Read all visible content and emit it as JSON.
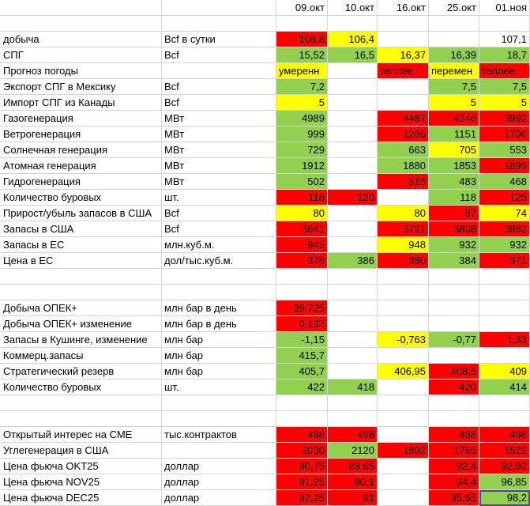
{
  "colors": {
    "red": "#ff0000",
    "green": "#92d050",
    "yellow": "#ffff00"
  },
  "columns": [
    "09.окт",
    "10.окт",
    "16.окт",
    "25.окт",
    "01.ноя"
  ],
  "rows": [
    {
      "label": "",
      "unit": "",
      "cells": [
        {
          "v": "",
          "c": ""
        },
        {
          "v": "",
          "c": ""
        },
        {
          "v": "",
          "c": ""
        },
        {
          "v": "",
          "c": ""
        },
        {
          "v": "",
          "c": ""
        }
      ]
    },
    {
      "label": "добыча",
      "unit": "Bcf  в сутки",
      "cells": [
        {
          "v": "106,8",
          "c": "r"
        },
        {
          "v": "106,4",
          "c": "y"
        },
        {
          "v": "",
          "c": ""
        },
        {
          "v": "",
          "c": ""
        },
        {
          "v": "107,1",
          "c": ""
        }
      ]
    },
    {
      "label": "СПГ",
      "unit": "Bcf",
      "cells": [
        {
          "v": "15,52",
          "c": "g"
        },
        {
          "v": "16,5",
          "c": "g"
        },
        {
          "v": "16,37",
          "c": "y"
        },
        {
          "v": "16,39",
          "c": "g"
        },
        {
          "v": "18,7",
          "c": "g"
        }
      ]
    },
    {
      "label": "Прогноз погоды",
      "unit": "",
      "cells": [
        {
          "v": "умеренн",
          "c": "y",
          "t": "l"
        },
        {
          "v": "",
          "c": ""
        },
        {
          "v": "теплее",
          "c": "r",
          "t": "l"
        },
        {
          "v": "перемен",
          "c": "y",
          "t": "l"
        },
        {
          "v": "теплее",
          "c": "r",
          "t": "l"
        }
      ]
    },
    {
      "label": "Экспорт СПГ в Мексику",
      "unit": "Bcf",
      "cells": [
        {
          "v": "7,2",
          "c": "g"
        },
        {
          "v": "",
          "c": ""
        },
        {
          "v": "",
          "c": ""
        },
        {
          "v": "7,5",
          "c": "g"
        },
        {
          "v": "7,5",
          "c": "g"
        }
      ]
    },
    {
      "label": "Импорт СПГ из Канады",
      "unit": "Bcf",
      "cells": [
        {
          "v": "5",
          "c": "y"
        },
        {
          "v": "",
          "c": ""
        },
        {
          "v": "",
          "c": ""
        },
        {
          "v": "5",
          "c": "y"
        },
        {
          "v": "5",
          "c": "y"
        }
      ]
    },
    {
      "label": "Газогенерация",
      "unit": "МВт",
      "cells": [
        {
          "v": "4989",
          "c": "g"
        },
        {
          "v": "",
          "c": ""
        },
        {
          "v": "4487",
          "c": "r"
        },
        {
          "v": "4246",
          "c": "r"
        },
        {
          "v": "3992",
          "c": "r"
        }
      ]
    },
    {
      "label": "Ветрогенерация",
      "unit": "МВт",
      "cells": [
        {
          "v": "999",
          "c": "g"
        },
        {
          "v": "",
          "c": ""
        },
        {
          "v": "1266",
          "c": "r"
        },
        {
          "v": "1151",
          "c": "g"
        },
        {
          "v": "1706",
          "c": "r"
        }
      ]
    },
    {
      "label": "Солнечная генерация",
      "unit": "МВт",
      "cells": [
        {
          "v": "729",
          "c": "g"
        },
        {
          "v": "",
          "c": ""
        },
        {
          "v": "663",
          "c": "g"
        },
        {
          "v": "705",
          "c": "y"
        },
        {
          "v": "553",
          "c": "g"
        }
      ]
    },
    {
      "label": "Атомная генерация",
      "unit": "МВт",
      "cells": [
        {
          "v": "1912",
          "c": "g"
        },
        {
          "v": "",
          "c": ""
        },
        {
          "v": "1880",
          "c": "g"
        },
        {
          "v": "1853",
          "c": "g"
        },
        {
          "v": "1899",
          "c": "r"
        }
      ]
    },
    {
      "label": "Гидрогенерация",
      "unit": "МВт",
      "cells": [
        {
          "v": "502",
          "c": "g"
        },
        {
          "v": "",
          "c": ""
        },
        {
          "v": "515",
          "c": "r"
        },
        {
          "v": "483",
          "c": "g"
        },
        {
          "v": "468",
          "c": "g"
        }
      ]
    },
    {
      "label": "Количество буровых",
      "unit": "шт.",
      "cells": [
        {
          "v": "118",
          "c": "r"
        },
        {
          "v": "120",
          "c": "r"
        },
        {
          "v": "",
          "c": ""
        },
        {
          "v": "118",
          "c": "g"
        },
        {
          "v": "125",
          "c": "r"
        }
      ]
    },
    {
      "label": "Прирост/убыль запасов в США",
      "unit": "Bcf",
      "cells": [
        {
          "v": "80",
          "c": "y"
        },
        {
          "v": "",
          "c": ""
        },
        {
          "v": "80",
          "c": "y"
        },
        {
          "v": "87",
          "c": "r"
        },
        {
          "v": "74",
          "c": "y"
        }
      ]
    },
    {
      "label": "Запасы в США",
      "unit": "Bcf",
      "cells": [
        {
          "v": "3641",
          "c": "r"
        },
        {
          "v": "",
          "c": ""
        },
        {
          "v": "3721",
          "c": "r"
        },
        {
          "v": "3808",
          "c": "r"
        },
        {
          "v": "3882",
          "c": "r"
        }
      ]
    },
    {
      "label": "Запасы в ЕС",
      "unit": "млн.куб.м.",
      "cells": [
        {
          "v": "945",
          "c": "r"
        },
        {
          "v": "",
          "c": ""
        },
        {
          "v": "948",
          "c": "y"
        },
        {
          "v": "932",
          "c": "g"
        },
        {
          "v": "932",
          "c": "g"
        }
      ]
    },
    {
      "label": "Цена в ЕС",
      "unit": "дол/тыс.куб.м.",
      "cells": [
        {
          "v": "376",
          "c": "r"
        },
        {
          "v": "386",
          "c": "g"
        },
        {
          "v": "380",
          "c": "r"
        },
        {
          "v": "384",
          "c": "g"
        },
        {
          "v": "371",
          "c": "r"
        }
      ]
    },
    {
      "label": "",
      "unit": "",
      "cells": [
        {
          "v": "",
          "c": ""
        },
        {
          "v": "",
          "c": ""
        },
        {
          "v": "",
          "c": ""
        },
        {
          "v": "",
          "c": ""
        },
        {
          "v": "",
          "c": ""
        }
      ]
    },
    {
      "label": "",
      "unit": "",
      "cells": [
        {
          "v": "",
          "c": ""
        },
        {
          "v": "",
          "c": ""
        },
        {
          "v": "",
          "c": ""
        },
        {
          "v": "",
          "c": ""
        },
        {
          "v": "",
          "c": ""
        }
      ]
    },
    {
      "label": "Добыча ОПЕК+",
      "unit": "млн бар в день",
      "cells": [
        {
          "v": "39,725",
          "c": "r"
        },
        {
          "v": "",
          "c": ""
        },
        {
          "v": "",
          "c": ""
        },
        {
          "v": "",
          "c": ""
        },
        {
          "v": "",
          "c": ""
        }
      ]
    },
    {
      "label": "Добыча ОПЕК+ изменение",
      "unit": "млн бар в день",
      "cells": [
        {
          "v": "0,137",
          "c": "r"
        },
        {
          "v": "",
          "c": ""
        },
        {
          "v": "",
          "c": ""
        },
        {
          "v": "",
          "c": ""
        },
        {
          "v": "",
          "c": ""
        }
      ]
    },
    {
      "label": "Запасы в Кушинге, изменение",
      "unit": "млн бар",
      "cells": [
        {
          "v": "-1,15",
          "c": "g"
        },
        {
          "v": "",
          "c": ""
        },
        {
          "v": "-0,763",
          "c": "y"
        },
        {
          "v": "-0,77",
          "c": "g"
        },
        {
          "v": "1,33",
          "c": "r"
        }
      ]
    },
    {
      "label": "Коммерц.запасы",
      "unit": "млн бар",
      "cells": [
        {
          "v": "415,7",
          "c": "g"
        },
        {
          "v": "",
          "c": ""
        },
        {
          "v": "",
          "c": ""
        },
        {
          "v": "",
          "c": ""
        },
        {
          "v": "",
          "c": ""
        }
      ]
    },
    {
      "label": "Стратегический резерв",
      "unit": "млн бар",
      "cells": [
        {
          "v": "405,7",
          "c": "g"
        },
        {
          "v": "",
          "c": ""
        },
        {
          "v": "406,95",
          "c": "y"
        },
        {
          "v": "408,5",
          "c": "r"
        },
        {
          "v": "409",
          "c": "y"
        }
      ]
    },
    {
      "label": "Количество буровых",
      "unit": "шт.",
      "cells": [
        {
          "v": "422",
          "c": "g"
        },
        {
          "v": "418",
          "c": "g"
        },
        {
          "v": "",
          "c": ""
        },
        {
          "v": "420",
          "c": "r"
        },
        {
          "v": "414",
          "c": "g"
        }
      ]
    },
    {
      "label": "",
      "unit": "",
      "cells": [
        {
          "v": "",
          "c": ""
        },
        {
          "v": "",
          "c": ""
        },
        {
          "v": "",
          "c": ""
        },
        {
          "v": "",
          "c": ""
        },
        {
          "v": "",
          "c": ""
        }
      ]
    },
    {
      "label": "",
      "unit": "",
      "cells": [
        {
          "v": "",
          "c": ""
        },
        {
          "v": "",
          "c": ""
        },
        {
          "v": "",
          "c": ""
        },
        {
          "v": "",
          "c": ""
        },
        {
          "v": "",
          "c": ""
        }
      ]
    },
    {
      "label": "Открытый интерес на СМЕ",
      "unit": "тыс.контрактов",
      "cells": [
        {
          "v": "498",
          "c": "r"
        },
        {
          "v": "498",
          "c": "r"
        },
        {
          "v": "",
          "c": ""
        },
        {
          "v": "498",
          "c": "r"
        },
        {
          "v": "498",
          "c": "r"
        }
      ]
    },
    {
      "label": "Углегенерация в США",
      "unit": "",
      "cells": [
        {
          "v": "2030",
          "c": "r"
        },
        {
          "v": "2120",
          "c": "g"
        },
        {
          "v": "1802",
          "c": "r"
        },
        {
          "v": "1765",
          "c": "r"
        },
        {
          "v": "1522",
          "c": "r"
        }
      ]
    },
    {
      "label": "Цена фьюча OKT25",
      "unit": "доллар",
      "cells": [
        {
          "v": "90,75",
          "c": "r"
        },
        {
          "v": "89,65",
          "c": "r"
        },
        {
          "v": "",
          "c": ""
        },
        {
          "v": "92,4",
          "c": "r"
        },
        {
          "v": "92,92",
          "c": "r"
        }
      ]
    },
    {
      "label": "Цена фьюча NOV25",
      "unit": "доллар",
      "cells": [
        {
          "v": "91,25",
          "c": "r"
        },
        {
          "v": "90,1",
          "c": "r"
        },
        {
          "v": "",
          "c": ""
        },
        {
          "v": "94,4",
          "c": "r"
        },
        {
          "v": "96,85",
          "c": "g"
        }
      ]
    },
    {
      "label": "Цена фьюча DEC25",
      "unit": "доллар",
      "cells": [
        {
          "v": "92,25",
          "c": "r"
        },
        {
          "v": "91",
          "c": "r"
        },
        {
          "v": "",
          "c": ""
        },
        {
          "v": "95,65",
          "c": "r"
        },
        {
          "v": "98,2",
          "c": "g",
          "sel": true
        }
      ]
    }
  ]
}
